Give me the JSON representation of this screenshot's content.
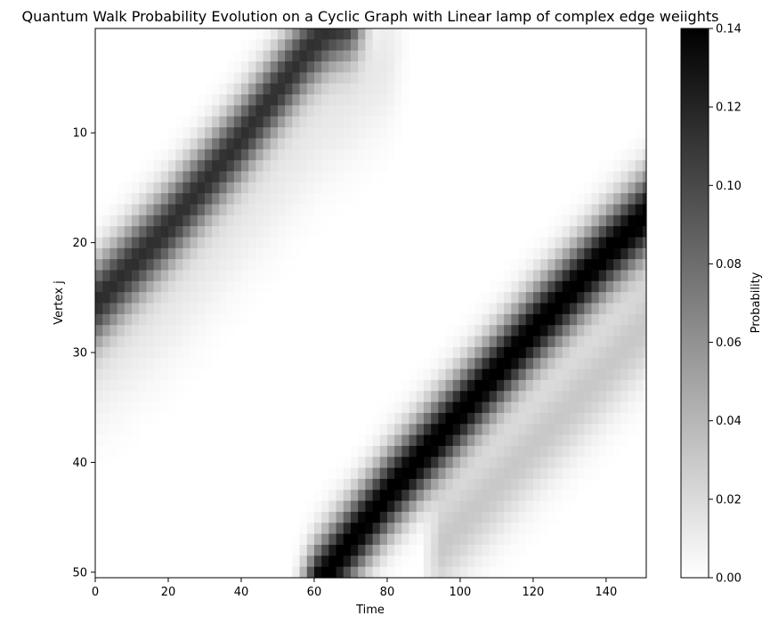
{
  "chart_data": {
    "type": "heatmap",
    "title": "Quantum Walk Probability Evolution on a Cyclic Graph with Linear lamp of complex edge weiights",
    "xlabel": "Time",
    "ylabel": "Vertex  j",
    "colorbar_label": "Probability",
    "colormap": "gray_r",
    "color_low": "#ffffff",
    "color_high": "#000000",
    "xlim": [
      0,
      151
    ],
    "ylim": [
      51,
      1
    ],
    "y_inverted": true,
    "vmin": 0.0,
    "vmax": 0.14,
    "xticks": [
      0,
      20,
      40,
      60,
      80,
      100,
      120,
      140
    ],
    "yticks": [
      10,
      20,
      30,
      40,
      50
    ],
    "colorbar_ticks": [
      "0.00",
      "0.02",
      "0.04",
      "0.06",
      "0.08",
      "0.10",
      "0.12",
      "0.14"
    ],
    "bands": [
      {
        "name": "",
        "peak": 0.112,
        "width": 2.6,
        "points": [
          [
            0,
            26
          ],
          [
            20,
            19
          ],
          [
            40,
            11
          ],
          [
            58,
            3
          ],
          [
            64,
            1
          ],
          [
            70,
            0
          ]
        ]
      },
      {
        "name": "",
        "peak": 0.145,
        "width": 2.6,
        "points": [
          [
            60,
            52
          ],
          [
            80,
            43.5
          ],
          [
            100,
            36
          ],
          [
            120,
            28.5
          ],
          [
            140,
            21.5
          ],
          [
            151,
            18
          ]
        ]
      },
      {
        "name": "",
        "peak": 0.03,
        "width": 3.2,
        "points": [
          [
            95,
            48
          ],
          [
            120,
            39
          ],
          [
            140,
            32
          ],
          [
            151,
            28
          ]
        ]
      },
      {
        "name": "",
        "peak": 0.012,
        "width": 4.0,
        "points": [
          [
            0,
            32
          ],
          [
            20,
            26
          ],
          [
            40,
            18
          ],
          [
            60,
            10
          ],
          [
            80,
            4
          ]
        ]
      }
    ]
  }
}
